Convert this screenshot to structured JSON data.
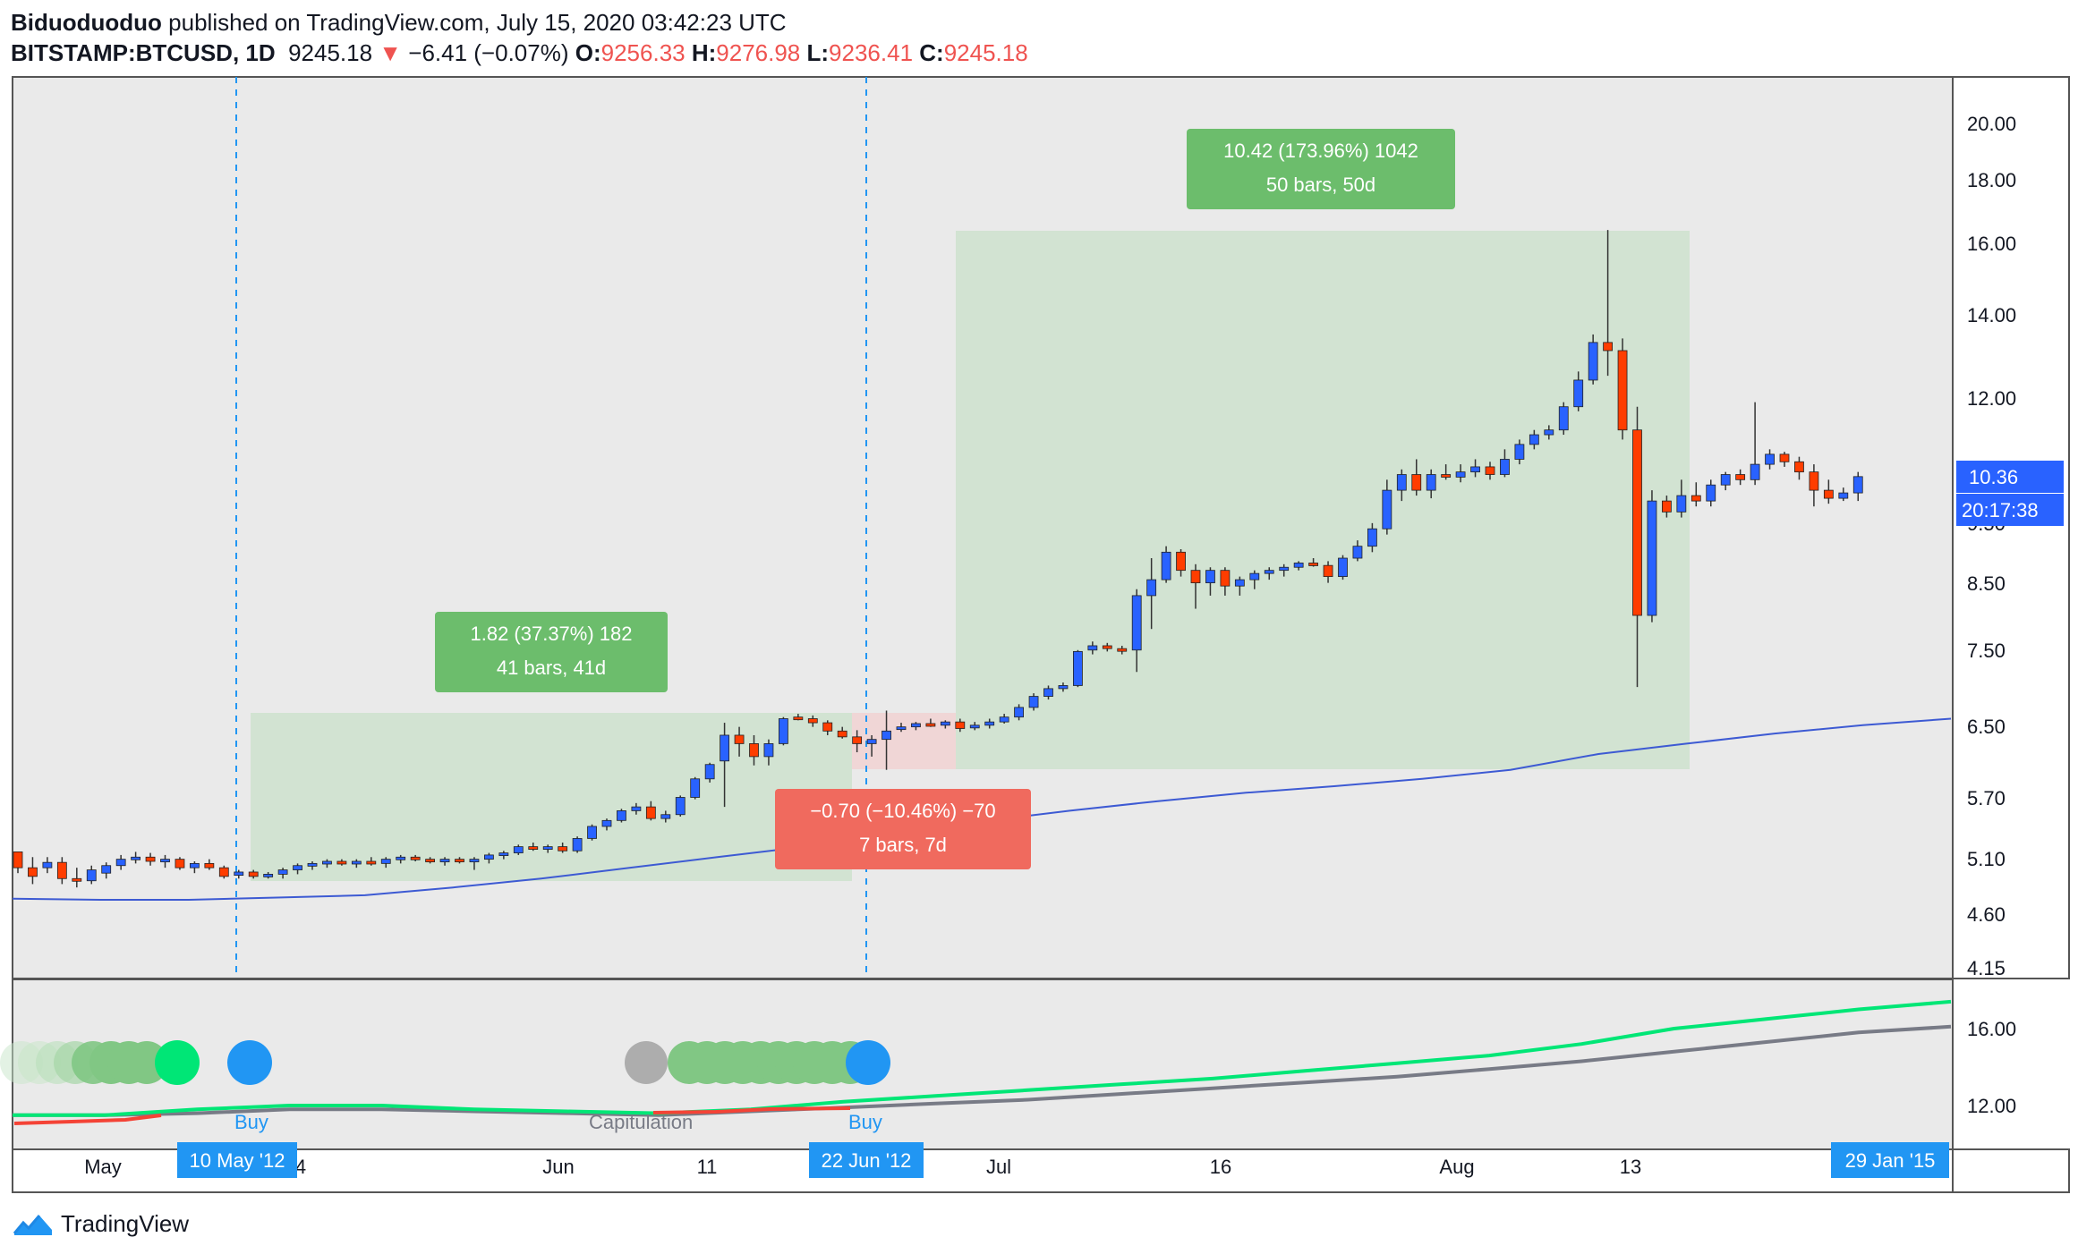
{
  "header": {
    "author": "Biduoduoduo",
    "published_text": "published on TradingView.com, July 15, 2020 03:42:23 UTC",
    "symbol": "BITSTAMP:BTCUSD, 1D",
    "price": "9245.18",
    "change_arrow": "▼",
    "change": "−6.41 (−0.07%)",
    "open_label": "O:",
    "open": "9256.33",
    "high_label": "H:",
    "high": "9276.98",
    "low_label": "L:",
    "low": "9236.41",
    "close_label": "C:",
    "close": "9245.18"
  },
  "colors": {
    "up": "#2962ff",
    "down": "#ff3d00",
    "ma": "#3d5ad3",
    "green_box": "rgba(131,198,131,0.25)",
    "red_box": "rgba(255,170,160,0.35)",
    "green_label": "#6cbd6c",
    "red_label": "#f06a5e",
    "buy": "#2196f3",
    "oscillator_green": "#00e676",
    "oscillator_gray": "#787b86",
    "oscillator_red": "#f44336"
  },
  "price_axis": {
    "labels": [
      "20.00",
      "18.00",
      "16.00",
      "14.00",
      "12.00",
      "9.50",
      "8.50",
      "7.50",
      "6.50",
      "5.70",
      "5.10",
      "4.60",
      "4.15"
    ],
    "current_price": "10.36",
    "countdown": "20:17:38"
  },
  "osc_axis": {
    "labels": [
      "16.00",
      "12.00"
    ]
  },
  "time_axis": {
    "labels": [
      "May",
      "4",
      "Jun",
      "11",
      "Jul",
      "16",
      "Aug",
      "13"
    ],
    "markers": [
      "10 May '12",
      "22 Jun '12",
      "29 Jan '15"
    ]
  },
  "measurements": [
    {
      "line1": "1.82 (37.37%) 182",
      "line2": "41 bars, 41d"
    },
    {
      "line1": "−0.70 (−10.46%) −70",
      "line2": "7 bars, 7d"
    },
    {
      "line1": "10.42 (173.96%) 1042",
      "line2": "50 bars, 50d"
    }
  ],
  "oscillator_labels": {
    "buy": "Buy",
    "capitulation": "Capitulation"
  },
  "chart_data": {
    "type": "candlestick",
    "symbol": "BITSTAMP:BTCUSD",
    "interval": "1D",
    "ylim": [
      4.15,
      20.5
    ],
    "y_scale": "log",
    "candles": [
      [
        5.15,
        5.15,
        4.95,
        5.0
      ],
      [
        5.0,
        5.1,
        4.85,
        4.92
      ],
      [
        5.0,
        5.1,
        4.95,
        5.05
      ],
      [
        5.05,
        5.1,
        4.85,
        4.9
      ],
      [
        4.9,
        5.0,
        4.82,
        4.88
      ],
      [
        4.88,
        5.02,
        4.85,
        4.98
      ],
      [
        4.95,
        5.05,
        4.9,
        5.02
      ],
      [
        5.02,
        5.12,
        4.98,
        5.08
      ],
      [
        5.08,
        5.15,
        5.04,
        5.1
      ],
      [
        5.1,
        5.14,
        5.02,
        5.06
      ],
      [
        5.06,
        5.12,
        5.0,
        5.08
      ],
      [
        5.08,
        5.1,
        4.98,
        5.0
      ],
      [
        5.0,
        5.06,
        4.95,
        5.04
      ],
      [
        5.04,
        5.08,
        4.98,
        5.0
      ],
      [
        5.0,
        5.02,
        4.9,
        4.92
      ],
      [
        4.93,
        4.98,
        4.9,
        4.96
      ],
      [
        4.96,
        4.98,
        4.9,
        4.92
      ],
      [
        4.92,
        4.96,
        4.9,
        4.94
      ],
      [
        4.94,
        5.0,
        4.9,
        4.98
      ],
      [
        4.98,
        5.04,
        4.94,
        5.02
      ],
      [
        5.02,
        5.06,
        4.98,
        5.04
      ],
      [
        5.04,
        5.08,
        5.0,
        5.06
      ],
      [
        5.06,
        5.08,
        5.02,
        5.04
      ],
      [
        5.04,
        5.08,
        5.0,
        5.06
      ],
      [
        5.06,
        5.1,
        5.02,
        5.04
      ],
      [
        5.04,
        5.1,
        5.0,
        5.08
      ],
      [
        5.08,
        5.12,
        5.04,
        5.1
      ],
      [
        5.1,
        5.12,
        5.06,
        5.08
      ],
      [
        5.08,
        5.1,
        5.04,
        5.06
      ],
      [
        5.06,
        5.1,
        5.02,
        5.08
      ],
      [
        5.08,
        5.1,
        5.04,
        5.06
      ],
      [
        5.06,
        5.1,
        4.98,
        5.08
      ],
      [
        5.08,
        5.14,
        5.04,
        5.12
      ],
      [
        5.12,
        5.16,
        5.08,
        5.14
      ],
      [
        5.14,
        5.22,
        5.12,
        5.2
      ],
      [
        5.2,
        5.24,
        5.16,
        5.18
      ],
      [
        5.18,
        5.22,
        5.14,
        5.2
      ],
      [
        5.2,
        5.24,
        5.14,
        5.16
      ],
      [
        5.16,
        5.3,
        5.14,
        5.28
      ],
      [
        5.28,
        5.42,
        5.26,
        5.4
      ],
      [
        5.4,
        5.48,
        5.36,
        5.46
      ],
      [
        5.46,
        5.58,
        5.44,
        5.56
      ],
      [
        5.56,
        5.64,
        5.52,
        5.6
      ],
      [
        5.6,
        5.66,
        5.46,
        5.48
      ],
      [
        5.48,
        5.56,
        5.44,
        5.52
      ],
      [
        5.52,
        5.72,
        5.5,
        5.7
      ],
      [
        5.7,
        5.92,
        5.68,
        5.9
      ],
      [
        5.9,
        6.08,
        5.86,
        6.06
      ],
      [
        6.1,
        6.55,
        5.6,
        6.4
      ],
      [
        6.4,
        6.5,
        6.15,
        6.3
      ],
      [
        6.3,
        6.4,
        6.05,
        6.15
      ],
      [
        6.15,
        6.35,
        6.05,
        6.3
      ],
      [
        6.3,
        6.62,
        6.28,
        6.6
      ],
      [
        6.62,
        6.66,
        6.58,
        6.6
      ],
      [
        6.6,
        6.64,
        6.5,
        6.55
      ],
      [
        6.55,
        6.58,
        6.4,
        6.45
      ],
      [
        6.45,
        6.5,
        6.36,
        6.38
      ],
      [
        6.38,
        6.46,
        6.2,
        6.3
      ],
      [
        6.3,
        6.4,
        6.15,
        6.35
      ],
      [
        6.35,
        6.7,
        6.0,
        6.45
      ],
      [
        6.48,
        6.55,
        6.44,
        6.5
      ],
      [
        6.5,
        6.56,
        6.46,
        6.54
      ],
      [
        6.54,
        6.6,
        6.5,
        6.52
      ],
      [
        6.52,
        6.58,
        6.48,
        6.56
      ],
      [
        6.56,
        6.6,
        6.44,
        6.48
      ],
      [
        6.5,
        6.56,
        6.46,
        6.52
      ],
      [
        6.52,
        6.6,
        6.48,
        6.56
      ],
      [
        6.56,
        6.66,
        6.54,
        6.62
      ],
      [
        6.62,
        6.78,
        6.58,
        6.74
      ],
      [
        6.74,
        6.92,
        6.7,
        6.88
      ],
      [
        6.88,
        7.02,
        6.84,
        6.98
      ],
      [
        6.98,
        7.06,
        6.94,
        7.02
      ],
      [
        7.02,
        7.5,
        7.0,
        7.48
      ],
      [
        7.5,
        7.62,
        7.44,
        7.56
      ],
      [
        7.56,
        7.6,
        7.48,
        7.52
      ],
      [
        7.52,
        7.56,
        7.44,
        7.5
      ],
      [
        7.5,
        8.4,
        7.2,
        8.3
      ],
      [
        8.3,
        8.9,
        7.8,
        8.55
      ],
      [
        8.55,
        9.1,
        8.5,
        9.0
      ],
      [
        9.0,
        9.05,
        8.6,
        8.7
      ],
      [
        8.7,
        8.8,
        8.1,
        8.5
      ],
      [
        8.5,
        8.75,
        8.3,
        8.7
      ],
      [
        8.7,
        8.75,
        8.3,
        8.45
      ],
      [
        8.45,
        8.6,
        8.3,
        8.55
      ],
      [
        8.55,
        8.7,
        8.4,
        8.65
      ],
      [
        8.65,
        8.75,
        8.55,
        8.7
      ],
      [
        8.7,
        8.8,
        8.6,
        8.75
      ],
      [
        8.75,
        8.85,
        8.7,
        8.82
      ],
      [
        8.82,
        8.9,
        8.76,
        8.78
      ],
      [
        8.78,
        8.85,
        8.5,
        8.6
      ],
      [
        8.6,
        8.95,
        8.55,
        8.9
      ],
      [
        8.9,
        9.2,
        8.85,
        9.1
      ],
      [
        9.1,
        9.5,
        9.0,
        9.4
      ],
      [
        9.4,
        10.3,
        9.3,
        10.1
      ],
      [
        10.1,
        10.5,
        9.9,
        10.4
      ],
      [
        10.4,
        10.7,
        10.0,
        10.1
      ],
      [
        10.1,
        10.5,
        9.95,
        10.4
      ],
      [
        10.4,
        10.6,
        10.3,
        10.35
      ],
      [
        10.35,
        10.6,
        10.25,
        10.45
      ],
      [
        10.45,
        10.7,
        10.35,
        10.55
      ],
      [
        10.55,
        10.65,
        10.3,
        10.4
      ],
      [
        10.4,
        10.9,
        10.35,
        10.7
      ],
      [
        10.7,
        11.1,
        10.6,
        11.0
      ],
      [
        11.0,
        11.3,
        10.9,
        11.2
      ],
      [
        11.2,
        11.4,
        11.1,
        11.3
      ],
      [
        11.3,
        11.9,
        11.2,
        11.8
      ],
      [
        11.8,
        12.6,
        11.7,
        12.4
      ],
      [
        12.4,
        13.5,
        12.3,
        13.3
      ],
      [
        13.3,
        16.4,
        12.5,
        13.1
      ],
      [
        13.1,
        13.4,
        11.1,
        11.3
      ],
      [
        11.3,
        11.8,
        7.0,
        8.0
      ],
      [
        8.0,
        10.1,
        7.9,
        9.9
      ],
      [
        9.9,
        10.0,
        9.6,
        9.7
      ],
      [
        9.7,
        10.3,
        9.6,
        10.0
      ],
      [
        10.0,
        10.25,
        9.8,
        9.9
      ],
      [
        9.9,
        10.3,
        9.8,
        10.2
      ],
      [
        10.2,
        10.45,
        10.1,
        10.4
      ],
      [
        10.4,
        10.5,
        10.2,
        10.3
      ],
      [
        10.3,
        11.9,
        10.2,
        10.6
      ],
      [
        10.6,
        10.9,
        10.5,
        10.8
      ],
      [
        10.8,
        10.85,
        10.55,
        10.65
      ],
      [
        10.65,
        10.75,
        10.3,
        10.45
      ],
      [
        10.45,
        10.6,
        9.8,
        10.1
      ],
      [
        10.1,
        10.3,
        9.85,
        9.95
      ],
      [
        9.95,
        10.15,
        9.9,
        10.05
      ],
      [
        10.05,
        10.45,
        9.9,
        10.36
      ]
    ],
    "moving_average": [
      4.72,
      4.71,
      4.71,
      4.73,
      4.75,
      4.82,
      4.9,
      5.0,
      5.1,
      5.2,
      5.32,
      5.45,
      5.56,
      5.66,
      5.75,
      5.82,
      5.9,
      6.0,
      6.18,
      6.3,
      6.42,
      6.52,
      6.6
    ],
    "osc_series": {
      "green": [
        11.5,
        11.5,
        11.8,
        12.0,
        12.0,
        11.8,
        11.7,
        11.6,
        11.8,
        12.2,
        12.5,
        12.8,
        13.1,
        13.4,
        13.8,
        14.2,
        14.6,
        15.2,
        16.0,
        16.5,
        17.0,
        17.4
      ],
      "gray": [
        11.5,
        11.5,
        11.6,
        11.8,
        11.8,
        11.7,
        11.6,
        11.5,
        11.7,
        11.9,
        12.1,
        12.3,
        12.6,
        12.9,
        13.2,
        13.5,
        13.9,
        14.3,
        14.8,
        15.3,
        15.8,
        16.1
      ]
    }
  }
}
